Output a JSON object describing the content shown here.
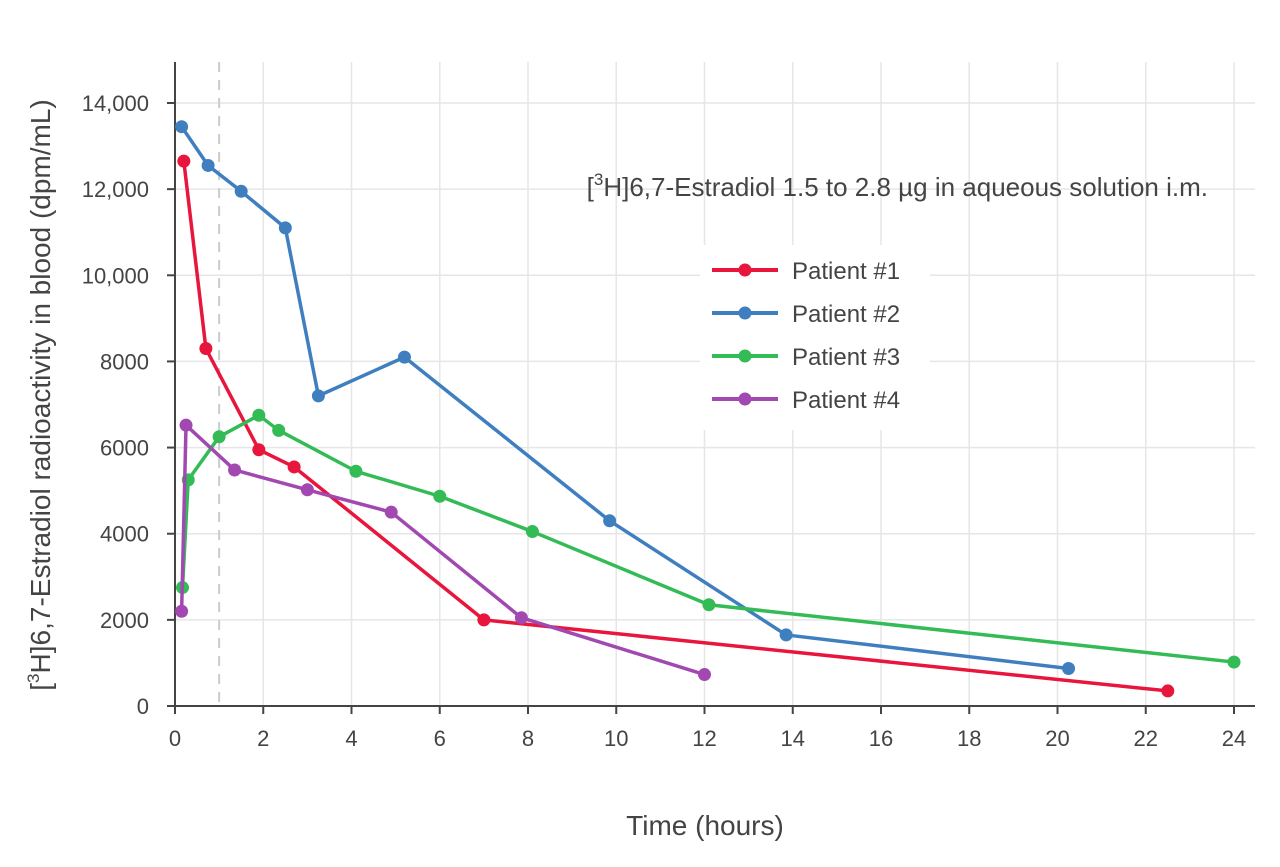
{
  "chart_data": {
    "type": "line",
    "annotation": {
      "prefix": "[",
      "superscript": "3",
      "text": "H]6,7-Estradiol 1.5 to 2.8 µg in aqueous solution i.m."
    },
    "xlabel": "Time (hours)",
    "ylabel": {
      "prefix": "[",
      "superscript": "3",
      "text": "H]6,7-Estradiol radioactivity in blood (dpm/mL)"
    },
    "xlim": [
      -0.2,
      24.5
    ],
    "ylim": [
      0,
      15000
    ],
    "x_ticks": [
      0,
      2,
      4,
      6,
      8,
      10,
      12,
      14,
      16,
      18,
      20,
      22,
      24
    ],
    "x_tick_labels": [
      "0",
      "2",
      "4",
      "6",
      "8",
      "10",
      "12",
      "14",
      "16",
      "18",
      "20",
      "22",
      "24"
    ],
    "y_ticks": [
      0,
      2000,
      4000,
      6000,
      8000,
      10000,
      12000,
      14000
    ],
    "y_tick_labels": [
      "0",
      "2000",
      "4000",
      "6000",
      "8000",
      "10,000",
      "12,000",
      "14,000"
    ],
    "grid": true,
    "reference_line": {
      "x": 1,
      "style": "dashed"
    },
    "legend_position": "upper-right",
    "series": [
      {
        "name": "Patient #1",
        "color": "#e8163c",
        "x": [
          0.2,
          0.7,
          1.9,
          2.7,
          7.0,
          22.5
        ],
        "y": [
          12650,
          8300,
          5950,
          5550,
          2000,
          350
        ]
      },
      {
        "name": "Patient #2",
        "color": "#3f7fbf",
        "x": [
          0.15,
          0.75,
          1.5,
          2.5,
          3.25,
          5.2,
          9.85,
          13.85,
          20.25
        ],
        "y": [
          13450,
          12550,
          11950,
          11100,
          7200,
          8100,
          4300,
          1650,
          870
        ]
      },
      {
        "name": "Patient #3",
        "color": "#33bb55",
        "x": [
          0.17,
          0.3,
          1.0,
          1.9,
          2.35,
          4.1,
          6.0,
          8.1,
          12.1,
          24.0
        ],
        "y": [
          2750,
          5250,
          6250,
          6750,
          6400,
          5450,
          4870,
          4050,
          2350,
          1020
        ]
      },
      {
        "name": "Patient #4",
        "color": "#a148b1",
        "x": [
          0.15,
          0.25,
          1.35,
          3.0,
          4.9,
          7.85,
          12.0
        ],
        "y": [
          2200,
          6520,
          5480,
          5020,
          4500,
          2050,
          730
        ]
      }
    ]
  }
}
